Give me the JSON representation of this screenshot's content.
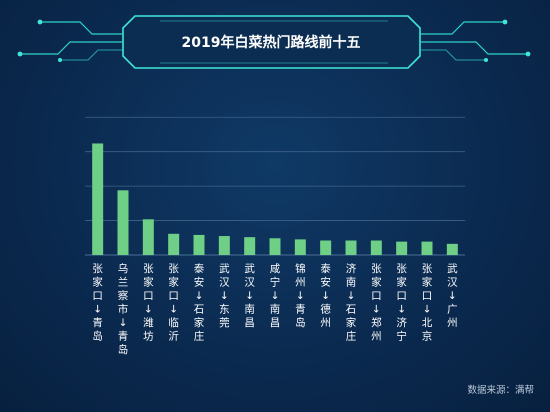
{
  "chart_data": {
    "type": "bar",
    "title": "2019年白菜热门路线前十五",
    "categories": [
      "张家口↓青岛",
      "乌兰察市↓青岛",
      "张家口↓潍坊",
      "张家口↓临沂",
      "泰安↓石家庄",
      "武汉↓东莞",
      "武汉↓南昌",
      "咸宁↓南昌",
      "锦州↓青岛",
      "泰安↓德州",
      "济南↓石家庄",
      "张家口↓郑州",
      "张家口↓济宁",
      "张家口↓北京",
      "武汉↓广州"
    ],
    "values": [
      100,
      58,
      32,
      19,
      18,
      17,
      16,
      15,
      14,
      13,
      13,
      13,
      12,
      12,
      10
    ],
    "ylim": [
      0,
      130
    ],
    "grid": true,
    "bar_color": "#6fcf86",
    "source": "数据来源：满帮"
  }
}
